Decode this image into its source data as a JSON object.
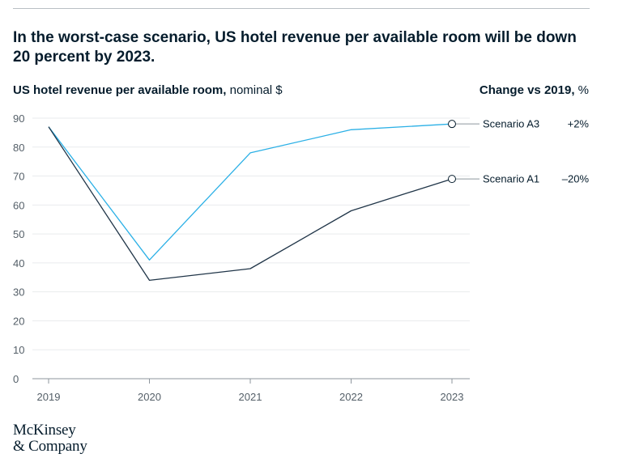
{
  "headline": "In the worst-case scenario, US hotel revenue per available room will be down 20 percent by 2023.",
  "subtitle": {
    "bold": "US hotel revenue per available room,",
    "rest": " nominal $"
  },
  "change_header": {
    "bold": "Change vs 2019,",
    "rest": " %"
  },
  "logo": {
    "line1": "McKinsey",
    "line2": "& Company"
  },
  "colors": {
    "scenario_a3": "#2bb0e6",
    "scenario_a1": "#203548",
    "grid": "#e9ebed",
    "axis": "#8e969d",
    "text": "#051c2c"
  },
  "chart_data": {
    "type": "line",
    "x": [
      "2019",
      "2020",
      "2021",
      "2022",
      "2023"
    ],
    "ylim": [
      0,
      90
    ],
    "yticks": [
      0,
      10,
      20,
      30,
      40,
      50,
      60,
      70,
      80,
      90
    ],
    "grid": true,
    "series": [
      {
        "name": "Scenario A3",
        "values": [
          87,
          41,
          78,
          86,
          88
        ],
        "change": "+2%",
        "color": "#2bb0e6"
      },
      {
        "name": "Scenario A1",
        "values": [
          87,
          34,
          38,
          58,
          69
        ],
        "change": "–20%",
        "color": "#203548"
      }
    ]
  }
}
